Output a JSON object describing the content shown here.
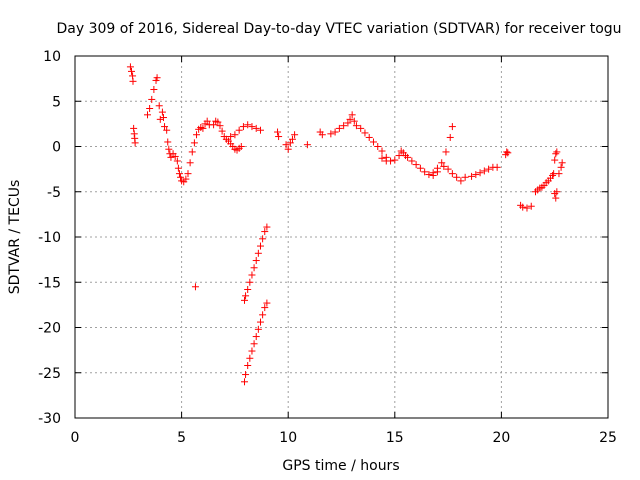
{
  "chart_data": {
    "type": "scatter",
    "title": "Day 309 of 2016, Sidereal Day-to-day VTEC variation (SDTVAR) for receiver togu",
    "xlabel": "GPS time / hours",
    "ylabel": "SDTVAR / TECUs",
    "xlim": [
      0,
      25
    ],
    "ylim": [
      -30,
      10
    ],
    "xticks": [
      0,
      5,
      10,
      15,
      20,
      25
    ],
    "yticks": [
      10,
      5,
      0,
      -5,
      -10,
      -15,
      -20,
      -25,
      -30
    ],
    "grid": true,
    "marker": "+",
    "color": "#ff0000",
    "series": [
      {
        "name": "SDTVAR",
        "points": [
          [
            2.6,
            8.8
          ],
          [
            2.65,
            8.3
          ],
          [
            2.7,
            7.8
          ],
          [
            2.72,
            7.2
          ],
          [
            2.75,
            2.0
          ],
          [
            2.78,
            1.4
          ],
          [
            2.8,
            0.9
          ],
          [
            2.82,
            0.4
          ],
          [
            3.4,
            3.5
          ],
          [
            3.5,
            4.2
          ],
          [
            3.6,
            5.2
          ],
          [
            3.7,
            6.3
          ],
          [
            3.8,
            7.3
          ],
          [
            3.85,
            7.6
          ],
          [
            3.95,
            4.5
          ],
          [
            4.0,
            3.0
          ],
          [
            4.1,
            3.8
          ],
          [
            4.15,
            3.2
          ],
          [
            4.2,
            2.2
          ],
          [
            4.3,
            1.8
          ],
          [
            4.35,
            0.5
          ],
          [
            4.4,
            -0.3
          ],
          [
            4.45,
            -0.8
          ],
          [
            4.5,
            -1.2
          ],
          [
            4.6,
            -0.8
          ],
          [
            4.7,
            -1.1
          ],
          [
            4.8,
            -1.6
          ],
          [
            4.85,
            -2.4
          ],
          [
            4.9,
            -3.0
          ],
          [
            4.95,
            -3.4
          ],
          [
            5.0,
            -3.8
          ],
          [
            5.1,
            -3.9
          ],
          [
            5.2,
            -3.6
          ],
          [
            5.3,
            -3.0
          ],
          [
            5.4,
            -1.8
          ],
          [
            5.5,
            -0.6
          ],
          [
            5.6,
            0.4
          ],
          [
            5.7,
            1.3
          ],
          [
            5.8,
            1.9
          ],
          [
            5.9,
            2.1
          ],
          [
            6.0,
            2.0
          ],
          [
            6.1,
            2.5
          ],
          [
            6.2,
            2.8
          ],
          [
            6.3,
            2.4
          ],
          [
            5.65,
            -15.5
          ],
          [
            6.5,
            2.4
          ],
          [
            6.6,
            2.8
          ],
          [
            6.7,
            2.7
          ],
          [
            6.8,
            2.3
          ],
          [
            6.9,
            1.7
          ],
          [
            7.0,
            1.1
          ],
          [
            7.1,
            0.8
          ],
          [
            7.2,
            0.6
          ],
          [
            7.3,
            0.3
          ],
          [
            7.4,
            0.0
          ],
          [
            7.5,
            -0.3
          ],
          [
            7.6,
            -0.4
          ],
          [
            7.7,
            -0.2
          ],
          [
            7.8,
            0.0
          ],
          [
            7.3,
            1.1
          ],
          [
            7.5,
            1.3
          ],
          [
            7.7,
            1.8
          ],
          [
            7.9,
            2.2
          ],
          [
            8.1,
            2.4
          ],
          [
            8.3,
            2.2
          ],
          [
            8.5,
            2.0
          ],
          [
            8.7,
            1.8
          ],
          [
            7.95,
            -17.0
          ],
          [
            8.0,
            -16.5
          ],
          [
            8.1,
            -15.8
          ],
          [
            8.2,
            -15.0
          ],
          [
            8.3,
            -14.2
          ],
          [
            8.4,
            -13.4
          ],
          [
            8.5,
            -12.6
          ],
          [
            8.6,
            -11.8
          ],
          [
            8.7,
            -11.0
          ],
          [
            8.8,
            -10.2
          ],
          [
            8.9,
            -9.4
          ],
          [
            9.0,
            -8.9
          ],
          [
            7.95,
            -26.0
          ],
          [
            8.0,
            -25.2
          ],
          [
            8.1,
            -24.2
          ],
          [
            8.2,
            -23.4
          ],
          [
            8.3,
            -22.6
          ],
          [
            8.4,
            -21.8
          ],
          [
            8.5,
            -21.0
          ],
          [
            8.6,
            -20.2
          ],
          [
            8.7,
            -19.4
          ],
          [
            8.8,
            -18.6
          ],
          [
            8.9,
            -17.8
          ],
          [
            9.0,
            -17.3
          ],
          [
            9.5,
            1.6
          ],
          [
            9.55,
            1.1
          ],
          [
            9.9,
            0.2
          ],
          [
            10.0,
            -0.3
          ],
          [
            10.1,
            0.4
          ],
          [
            10.2,
            0.8
          ],
          [
            10.3,
            1.3
          ],
          [
            10.9,
            0.2
          ],
          [
            11.5,
            1.6
          ],
          [
            11.6,
            1.3
          ],
          [
            12.0,
            1.4
          ],
          [
            12.2,
            1.6
          ],
          [
            12.4,
            2.0
          ],
          [
            12.6,
            2.3
          ],
          [
            12.8,
            2.6
          ],
          [
            12.9,
            3.0
          ],
          [
            13.0,
            3.5
          ],
          [
            13.1,
            2.8
          ],
          [
            13.2,
            2.3
          ],
          [
            13.4,
            2.0
          ],
          [
            13.6,
            1.5
          ],
          [
            13.8,
            1.0
          ],
          [
            14.0,
            0.5
          ],
          [
            14.2,
            0.0
          ],
          [
            14.4,
            -0.5
          ],
          [
            14.6,
            -1.2
          ],
          [
            14.8,
            -1.6
          ],
          [
            15.0,
            -1.5
          ],
          [
            15.2,
            -1.0
          ],
          [
            15.3,
            -0.5
          ],
          [
            15.4,
            -0.7
          ],
          [
            15.6,
            -1.2
          ],
          [
            15.8,
            -1.6
          ],
          [
            16.0,
            -2.0
          ],
          [
            16.2,
            -2.4
          ],
          [
            16.4,
            -2.8
          ],
          [
            16.6,
            -3.1
          ],
          [
            16.8,
            -2.9
          ],
          [
            17.0,
            -2.4
          ],
          [
            17.2,
            -1.8
          ],
          [
            17.4,
            -0.6
          ],
          [
            17.6,
            1.0
          ],
          [
            17.7,
            2.2
          ],
          [
            14.4,
            -1.3
          ],
          [
            14.6,
            -1.6
          ],
          [
            15.5,
            -1.0
          ],
          [
            16.8,
            -3.2
          ],
          [
            17.0,
            -2.8
          ],
          [
            17.3,
            -2.2
          ],
          [
            17.5,
            -2.5
          ],
          [
            17.7,
            -3.0
          ],
          [
            17.9,
            -3.4
          ],
          [
            18.1,
            -3.8
          ],
          [
            18.3,
            -3.4
          ],
          [
            18.6,
            -3.3
          ],
          [
            18.8,
            -3.1
          ],
          [
            19.0,
            -2.9
          ],
          [
            19.2,
            -2.7
          ],
          [
            19.4,
            -2.5
          ],
          [
            19.6,
            -2.3
          ],
          [
            19.8,
            -2.3
          ],
          [
            20.2,
            -0.9
          ],
          [
            20.25,
            -0.6
          ],
          [
            20.3,
            -0.7
          ],
          [
            20.9,
            -6.5
          ],
          [
            21.0,
            -6.7
          ],
          [
            21.2,
            -6.8
          ],
          [
            21.4,
            -6.6
          ],
          [
            21.6,
            -5.0
          ],
          [
            21.7,
            -4.8
          ],
          [
            21.8,
            -4.6
          ],
          [
            21.9,
            -4.5
          ],
          [
            22.0,
            -4.3
          ],
          [
            22.1,
            -4.0
          ],
          [
            22.2,
            -3.8
          ],
          [
            22.3,
            -3.5
          ],
          [
            22.4,
            -3.2
          ],
          [
            22.45,
            -3.0
          ],
          [
            22.5,
            -1.5
          ],
          [
            22.55,
            -0.8
          ],
          [
            22.6,
            -0.6
          ],
          [
            22.5,
            -5.2
          ],
          [
            22.55,
            -5.7
          ],
          [
            22.6,
            -5.0
          ],
          [
            22.7,
            -3.0
          ],
          [
            22.8,
            -2.3
          ],
          [
            22.85,
            -1.8
          ]
        ]
      }
    ]
  }
}
